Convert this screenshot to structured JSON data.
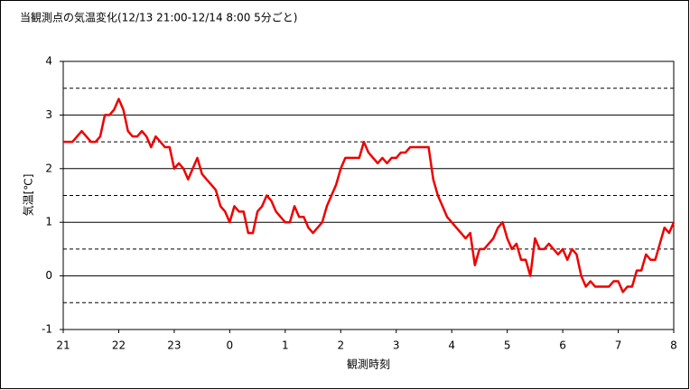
{
  "chart_data": {
    "type": "line",
    "title": "当観測点の気温変化(12/13 21:00-12/14 8:00 5分ごと)",
    "y_label": "気温[℃]",
    "x_label": "観測時刻",
    "categories": [
      "21",
      null,
      null,
      null,
      null,
      null,
      null,
      null,
      null,
      null,
      null,
      null,
      "22",
      null,
      null,
      null,
      null,
      null,
      null,
      null,
      null,
      null,
      null,
      null,
      "23",
      null,
      null,
      null,
      null,
      null,
      null,
      null,
      null,
      null,
      null,
      null,
      "0",
      null,
      null,
      null,
      null,
      null,
      null,
      null,
      null,
      null,
      null,
      null,
      "1",
      null,
      null,
      null,
      null,
      null,
      null,
      null,
      null,
      null,
      null,
      null,
      "2",
      null,
      null,
      null,
      null,
      null,
      null,
      null,
      null,
      null,
      null,
      null,
      "3",
      null,
      null,
      null,
      null,
      null,
      null,
      null,
      null,
      null,
      null,
      null,
      "4",
      null,
      null,
      null,
      null,
      null,
      null,
      null,
      null,
      null,
      null,
      null,
      "5",
      null,
      null,
      null,
      null,
      null,
      null,
      null,
      null,
      null,
      null,
      null,
      "6",
      null,
      null,
      null,
      null,
      null,
      null,
      null,
      null,
      null,
      null,
      null,
      "7",
      null,
      null,
      null,
      null,
      null,
      null,
      null,
      null,
      null,
      null,
      null,
      "8"
    ],
    "values": [
      2.5,
      2.5,
      2.5,
      2.6,
      2.7,
      2.6,
      2.5,
      2.5,
      2.6,
      3.0,
      3.0,
      3.1,
      3.3,
      3.1,
      2.7,
      2.6,
      2.6,
      2.7,
      2.6,
      2.4,
      2.6,
      2.5,
      2.4,
      2.4,
      2.0,
      2.1,
      2.0,
      1.8,
      2.0,
      2.2,
      1.9,
      1.8,
      1.7,
      1.6,
      1.3,
      1.2,
      1.0,
      1.3,
      1.2,
      1.2,
      0.8,
      0.8,
      1.2,
      1.3,
      1.5,
      1.4,
      1.2,
      1.1,
      1.0,
      1.0,
      1.3,
      1.1,
      1.1,
      0.9,
      0.8,
      0.9,
      1.0,
      1.3,
      1.5,
      1.7,
      2.0,
      2.2,
      2.2,
      2.2,
      2.2,
      2.5,
      2.3,
      2.2,
      2.1,
      2.2,
      2.1,
      2.2,
      2.2,
      2.3,
      2.3,
      2.4,
      2.4,
      2.4,
      2.4,
      2.4,
      1.8,
      1.5,
      1.3,
      1.1,
      1.0,
      0.9,
      0.8,
      0.7,
      0.8,
      0.2,
      0.5,
      0.5,
      0.6,
      0.7,
      0.9,
      1.0,
      0.7,
      0.5,
      0.6,
      0.3,
      0.3,
      0.0,
      0.7,
      0.5,
      0.5,
      0.6,
      0.5,
      0.4,
      0.5,
      0.3,
      0.5,
      0.4,
      0.0,
      -0.2,
      -0.1,
      -0.2,
      -0.2,
      -0.2,
      -0.2,
      -0.1,
      -0.1,
      -0.3,
      -0.2,
      -0.2,
      0.1,
      0.1,
      0.4,
      0.3,
      0.3,
      0.6,
      0.9,
      0.8,
      1.0
    ],
    "color": "#ee0000",
    "ylim": [
      -1,
      4
    ],
    "yticks": [
      -1,
      0,
      1,
      2,
      3,
      4
    ],
    "minor_yticks": [
      -0.5,
      0.5,
      1.5,
      2.5,
      3.5
    ],
    "grid": true
  }
}
